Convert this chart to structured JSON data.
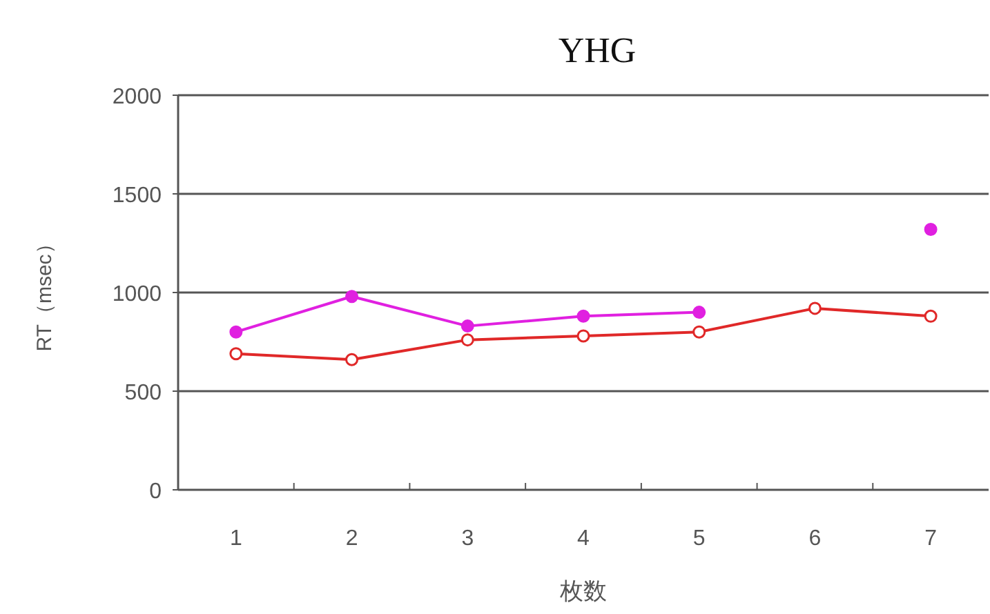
{
  "chart_data": {
    "type": "line",
    "title": "YHG",
    "xlabel": "枚数",
    "ylabel": "RT（msec）",
    "categories": [
      "1",
      "2",
      "3",
      "4",
      "5",
      "6",
      "7"
    ],
    "series": [
      {
        "color": "#e020e0",
        "values": [
          800,
          980,
          830,
          880,
          900,
          null,
          1320
        ]
      },
      {
        "color": "#e02828",
        "values": [
          690,
          660,
          760,
          780,
          800,
          920,
          880
        ]
      }
    ],
    "ylim": [
      0,
      2000
    ],
    "yticks": [
      0,
      500,
      1000,
      1500,
      2000
    ],
    "grid": "y",
    "marker": "circle",
    "line_style": "solid"
  }
}
